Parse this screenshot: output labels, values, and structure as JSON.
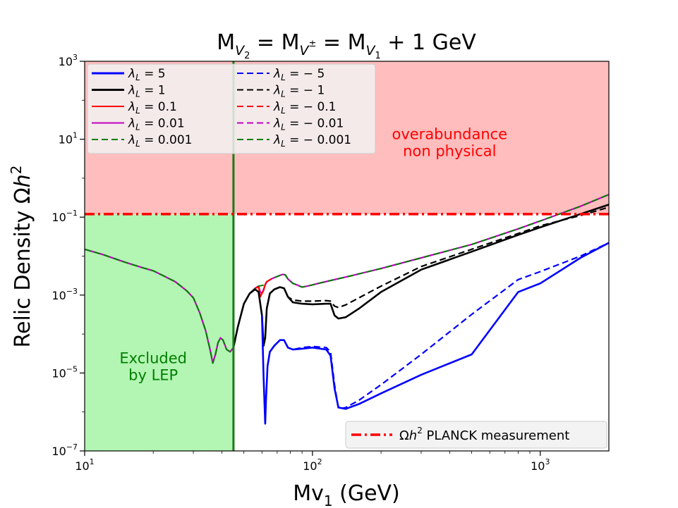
{
  "chart_data": {
    "type": "line",
    "title_parts": [
      "M",
      "V",
      "2",
      " = M",
      "V",
      "±",
      " = M",
      "V",
      "1",
      " + 1 GeV"
    ],
    "xlabel_parts": [
      "Mv",
      "1",
      " (GeV)"
    ],
    "ylabel_parts": [
      "Relic Density Ω",
      "h",
      "2"
    ],
    "x_scale": "log",
    "y_scale": "log",
    "xlim": [
      10,
      2000
    ],
    "ylim": [
      1e-07,
      1000
    ],
    "x_ticks": [
      {
        "value": 10,
        "base": "10",
        "exp": "1"
      },
      {
        "value": 100,
        "base": "10",
        "exp": "2"
      },
      {
        "value": 1000,
        "base": "10",
        "exp": "3"
      }
    ],
    "y_ticks": [
      {
        "value": 1e-07,
        "base": "10",
        "exp": "−7"
      },
      {
        "value": 1e-05,
        "base": "10",
        "exp": "−5"
      },
      {
        "value": 0.001,
        "base": "10",
        "exp": "−3"
      },
      {
        "value": 0.1,
        "base": "10",
        "exp": "−1"
      },
      {
        "value": 10,
        "base": "10",
        "exp": "1"
      },
      {
        "value": 1000,
        "base": "10",
        "exp": "3"
      }
    ],
    "grid": false,
    "regions": [
      {
        "name": "lep-excluded",
        "x_from": 10,
        "x_to": 45,
        "color": "#b3f5b3",
        "label_lines": [
          "Excluded",
          "by LEP"
        ],
        "label_color": "#008000",
        "label_x": 20,
        "label_y": 1.8e-05
      },
      {
        "name": "overabundance",
        "y_from": 0.12,
        "color": "#ffbdbd",
        "label_lines": [
          "overabundance",
          "non physical"
        ],
        "label_color": "#ff0000",
        "label_x": 400,
        "label_y": 10
      }
    ],
    "lep_line": {
      "x": 45,
      "color": "#1a7a1a"
    },
    "planck_line": {
      "y": 0.12,
      "color": "#ff0000",
      "legend_label_parts": [
        "Ω",
        "h",
        "2",
        " PLANCK measurement"
      ]
    },
    "legend_placement": "upper-left",
    "legend_entries": [
      {
        "label": "λ",
        "sub": "L",
        "value": " = 5",
        "color": "#0000ff",
        "dash": "solid",
        "width": 3
      },
      {
        "label": "λ",
        "sub": "L",
        "value": " = 1",
        "color": "#000000",
        "dash": "solid",
        "width": 3
      },
      {
        "label": "λ",
        "sub": "L",
        "value": " = 0.1",
        "color": "#ff0000",
        "dash": "solid",
        "width": 2
      },
      {
        "label": "λ",
        "sub": "L",
        "value": " = 0.01",
        "color": "#bf00bf",
        "dash": "solid",
        "width": 2
      },
      {
        "label": "λ",
        "sub": "L",
        "value": " = 0.001",
        "color": "#008000",
        "dash": "dashed",
        "width": 2
      },
      {
        "label": "λ",
        "sub": "L",
        "value": " = − 5",
        "color": "#0000ff",
        "dash": "dashed",
        "width": 2
      },
      {
        "label": "λ",
        "sub": "L",
        "value": " = − 1",
        "color": "#000000",
        "dash": "dashed",
        "width": 2
      },
      {
        "label": "λ",
        "sub": "L",
        "value": " = − 0.1",
        "color": "#ff0000",
        "dash": "dashed",
        "width": 2
      },
      {
        "label": "λ",
        "sub": "L",
        "value": " = − 0.01",
        "color": "#bf00bf",
        "dash": "dashed",
        "width": 2
      },
      {
        "label": "λ",
        "sub": "L",
        "value": " = − 0.001",
        "color": "#008000",
        "dash": "dashed",
        "width": 2
      }
    ],
    "series": [
      {
        "name": "lambda-small",
        "color": "#bf00bf",
        "width": 2.2,
        "dash": "solid",
        "points": [
          [
            10,
            0.015
          ],
          [
            12,
            0.011
          ],
          [
            15,
            0.007
          ],
          [
            18,
            0.005
          ],
          [
            20,
            0.0042
          ],
          [
            22,
            0.0032
          ],
          [
            25,
            0.0022
          ],
          [
            28,
            0.0013
          ],
          [
            30,
            0.00085
          ],
          [
            32,
            0.00035
          ],
          [
            34,
            0.00012
          ],
          [
            35.5,
            4e-05
          ],
          [
            36.5,
            1.8e-05
          ],
          [
            37.5,
            3e-05
          ],
          [
            38.5,
            6e-05
          ],
          [
            39.5,
            8e-05
          ],
          [
            40.5,
            7e-05
          ],
          [
            42,
            4e-05
          ],
          [
            43.5,
            3.5e-05
          ],
          [
            45,
            4.5e-05
          ],
          [
            47,
            0.00015
          ],
          [
            50,
            0.0006
          ],
          [
            53,
            0.0011
          ],
          [
            56,
            0.0015
          ],
          [
            58,
            0.0017
          ],
          [
            59,
            0.0012
          ],
          [
            60,
            0.0011
          ],
          [
            61,
            0.0014
          ],
          [
            62,
            0.0018
          ],
          [
            63,
            0.0022
          ],
          [
            66,
            0.0026
          ],
          [
            70,
            0.003
          ],
          [
            74,
            0.0034
          ],
          [
            76,
            0.0033
          ],
          [
            78,
            0.0026
          ],
          [
            82,
            0.002
          ],
          [
            86,
            0.0018
          ],
          [
            90,
            0.0016
          ],
          [
            95,
            0.0017
          ],
          [
            110,
            0.0021
          ],
          [
            150,
            0.0032
          ],
          [
            200,
            0.0048
          ],
          [
            300,
            0.009
          ],
          [
            500,
            0.02
          ],
          [
            800,
            0.05
          ],
          [
            1000,
            0.08
          ],
          [
            1500,
            0.19
          ],
          [
            2000,
            0.38
          ]
        ]
      },
      {
        "name": "lambda-0.001-dashed",
        "color": "#008000",
        "width": 2,
        "dash": "dashed",
        "points": [
          [
            10,
            0.015
          ],
          [
            12,
            0.011
          ],
          [
            15,
            0.007
          ],
          [
            18,
            0.005
          ],
          [
            20,
            0.0042
          ],
          [
            22,
            0.0032
          ],
          [
            25,
            0.0022
          ],
          [
            28,
            0.0013
          ],
          [
            30,
            0.00085
          ],
          [
            32,
            0.00035
          ],
          [
            34,
            0.00012
          ],
          [
            35.5,
            4e-05
          ],
          [
            36.5,
            1.8e-05
          ],
          [
            37.5,
            3e-05
          ],
          [
            38.5,
            6e-05
          ],
          [
            39.5,
            8e-05
          ],
          [
            40.5,
            7e-05
          ],
          [
            42,
            4e-05
          ],
          [
            43.5,
            3.5e-05
          ],
          [
            45,
            4.5e-05
          ],
          [
            47,
            0.00015
          ],
          [
            50,
            0.0006
          ],
          [
            53,
            0.0011
          ],
          [
            56,
            0.0015
          ],
          [
            58,
            0.0017
          ],
          [
            61,
            0.0018
          ],
          [
            63,
            0.0022
          ],
          [
            66,
            0.0026
          ],
          [
            70,
            0.003
          ],
          [
            74,
            0.0034
          ],
          [
            76,
            0.0033
          ],
          [
            78,
            0.0026
          ],
          [
            82,
            0.002
          ],
          [
            86,
            0.0018
          ],
          [
            90,
            0.0016
          ],
          [
            95,
            0.0017
          ],
          [
            110,
            0.0021
          ],
          [
            150,
            0.0032
          ],
          [
            200,
            0.0048
          ],
          [
            300,
            0.009
          ],
          [
            500,
            0.02
          ],
          [
            800,
            0.05
          ],
          [
            1000,
            0.08
          ],
          [
            1500,
            0.19
          ],
          [
            2000,
            0.38
          ]
        ]
      },
      {
        "name": "lambda-0.1",
        "color": "#ff0000",
        "width": 2,
        "dash": "solid",
        "points": [
          [
            56,
            0.0015
          ],
          [
            58,
            0.0016
          ],
          [
            59,
            0.0009
          ],
          [
            60,
            0.0011
          ],
          [
            61,
            0.0013
          ],
          [
            62,
            0.0019
          ],
          [
            63,
            0.0022
          ],
          [
            66,
            0.0026
          ]
        ]
      },
      {
        "name": "lambda-1",
        "color": "#000000",
        "width": 2.6,
        "dash": "solid",
        "points": [
          [
            45,
            4.5e-05
          ],
          [
            47,
            0.00015
          ],
          [
            50,
            0.0006
          ],
          [
            53,
            0.0011
          ],
          [
            56,
            0.0014
          ],
          [
            58,
            0.0012
          ],
          [
            60,
            0.0003
          ],
          [
            61,
            5e-05
          ],
          [
            62,
            8e-05
          ],
          [
            63,
            0.00045
          ],
          [
            65,
            0.0011
          ],
          [
            68,
            0.0014
          ],
          [
            72,
            0.0016
          ],
          [
            75,
            0.0015
          ],
          [
            78,
            0.0009
          ],
          [
            82,
            0.00065
          ],
          [
            90,
            0.0006
          ],
          [
            100,
            0.00058
          ],
          [
            115,
            0.0006
          ],
          [
            120,
            0.0006
          ],
          [
            125,
            0.0003
          ],
          [
            130,
            0.00025
          ],
          [
            140,
            0.00027
          ],
          [
            160,
            0.00045
          ],
          [
            200,
            0.0012
          ],
          [
            300,
            0.0045
          ],
          [
            500,
            0.013
          ],
          [
            800,
            0.035
          ],
          [
            1000,
            0.055
          ],
          [
            1500,
            0.12
          ],
          [
            2000,
            0.21
          ]
        ]
      },
      {
        "name": "lambda-minus-1",
        "color": "#000000",
        "width": 2.2,
        "dash": "dashed",
        "points": [
          [
            63,
            0.00045
          ],
          [
            65,
            0.0011
          ],
          [
            68,
            0.0014
          ],
          [
            72,
            0.0016
          ],
          [
            75,
            0.0015
          ],
          [
            78,
            0.0009
          ],
          [
            82,
            0.00075
          ],
          [
            90,
            0.0007
          ],
          [
            100,
            0.0007
          ],
          [
            115,
            0.00072
          ],
          [
            120,
            0.0007
          ],
          [
            125,
            0.00052
          ],
          [
            130,
            0.00048
          ],
          [
            140,
            0.00056
          ],
          [
            160,
            0.00085
          ],
          [
            200,
            0.0017
          ],
          [
            300,
            0.0054
          ],
          [
            500,
            0.015
          ],
          [
            800,
            0.038
          ],
          [
            1000,
            0.06
          ],
          [
            1500,
            0.11
          ],
          [
            2000,
            0.18
          ]
        ]
      },
      {
        "name": "lambda-5",
        "color": "#0000ff",
        "width": 2.6,
        "dash": "solid",
        "points": [
          [
            60,
            0.0003
          ],
          [
            61,
            8e-06
          ],
          [
            62,
            5e-07
          ],
          [
            62.5,
            2e-06
          ],
          [
            63.5,
            1.5e-05
          ],
          [
            65,
            3.5e-05
          ],
          [
            68,
            5e-05
          ],
          [
            72,
            7e-05
          ],
          [
            75,
            7e-05
          ],
          [
            78,
            4.5e-05
          ],
          [
            82,
            4e-05
          ],
          [
            90,
            4.2e-05
          ],
          [
            100,
            4.5e-05
          ],
          [
            115,
            4e-05
          ],
          [
            120,
            2.8e-05
          ],
          [
            125,
            4e-06
          ],
          [
            130,
            1.3e-06
          ],
          [
            140,
            1.2e-06
          ],
          [
            160,
            1.6e-06
          ],
          [
            200,
            3e-06
          ],
          [
            300,
            9e-06
          ],
          [
            500,
            3e-05
          ],
          [
            800,
            0.0012
          ],
          [
            1000,
            0.002
          ],
          [
            1500,
            0.009
          ],
          [
            2000,
            0.022
          ]
        ]
      },
      {
        "name": "lambda-minus-5",
        "color": "#0000ff",
        "width": 2.2,
        "dash": "dashed",
        "points": [
          [
            63.5,
            1.5e-05
          ],
          [
            65,
            3.5e-05
          ],
          [
            68,
            5e-05
          ],
          [
            72,
            7e-05
          ],
          [
            75,
            7e-05
          ],
          [
            78,
            4.5e-05
          ],
          [
            82,
            4e-05
          ],
          [
            90,
            4.5e-05
          ],
          [
            100,
            4.8e-05
          ],
          [
            115,
            4.5e-05
          ],
          [
            120,
            3.5e-05
          ],
          [
            125,
            5e-06
          ],
          [
            130,
            1.2e-06
          ],
          [
            140,
            1.3e-06
          ],
          [
            160,
            2e-06
          ],
          [
            200,
            5e-06
          ],
          [
            300,
            3e-05
          ],
          [
            500,
            0.00032
          ],
          [
            800,
            0.0025
          ],
          [
            1000,
            0.004
          ],
          [
            1500,
            0.01
          ],
          [
            2000,
            0.022
          ]
        ]
      }
    ]
  }
}
